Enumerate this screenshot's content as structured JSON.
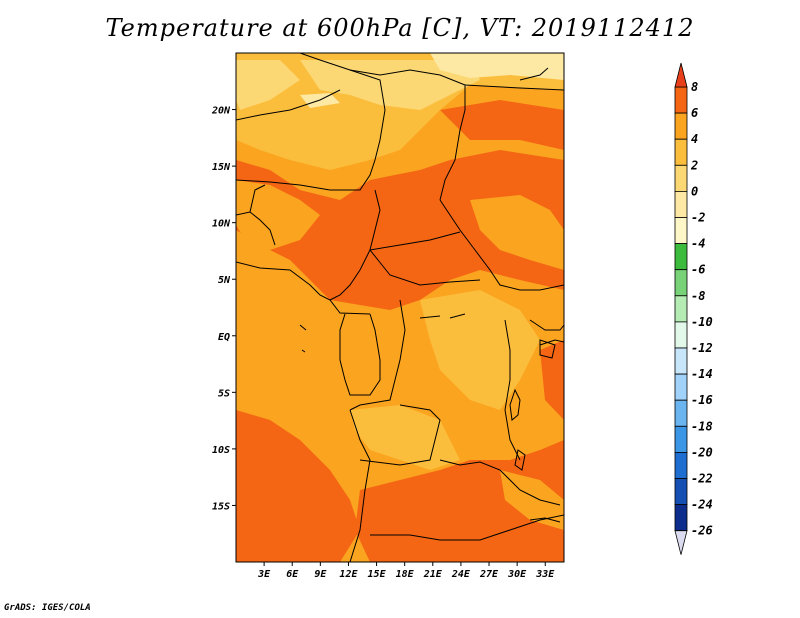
{
  "title": "Temperature at 600hPa [C], VT: 2019112412",
  "credit": "GrADS: IGES/COLA",
  "map": {
    "lat_range": [
      -20,
      25
    ],
    "lon_range": [
      0,
      35
    ],
    "lat_ticks": [
      {
        "value": 20,
        "label": "20N"
      },
      {
        "value": 15,
        "label": "15N"
      },
      {
        "value": 10,
        "label": "10N"
      },
      {
        "value": 5,
        "label": "5N"
      },
      {
        "value": 0,
        "label": "EQ"
      },
      {
        "value": -5,
        "label": "5S"
      },
      {
        "value": -10,
        "label": "10S"
      },
      {
        "value": -15,
        "label": "15S"
      }
    ],
    "lon_ticks": [
      {
        "value": 3,
        "label": "3E"
      },
      {
        "value": 6,
        "label": "6E"
      },
      {
        "value": 9,
        "label": "9E"
      },
      {
        "value": 12,
        "label": "12E"
      },
      {
        "value": 15,
        "label": "15E"
      },
      {
        "value": 18,
        "label": "18E"
      },
      {
        "value": 21,
        "label": "21E"
      },
      {
        "value": 24,
        "label": "24E"
      },
      {
        "value": 27,
        "label": "27E"
      },
      {
        "value": 30,
        "label": "30E"
      },
      {
        "value": 33,
        "label": "33E"
      }
    ],
    "dominant_range": "2 to 4 C",
    "warm_regions_range": "4 to 6 C",
    "cool_regions_range": "0 to 2 C"
  },
  "colorbar": {
    "levels": [
      "8",
      "6",
      "4",
      "2",
      "0",
      "-2",
      "-4",
      "-6",
      "-8",
      "-10",
      "-12",
      "-14",
      "-16",
      "-18",
      "-20",
      "-22",
      "-24",
      "-26"
    ],
    "colors": [
      "#e8401a",
      "#f46614",
      "#fba41f",
      "#fbbd3c",
      "#fbd873",
      "#fde9a3",
      "#fdf6c7",
      "#3cbb3c",
      "#78d278",
      "#b4ecb4",
      "#e2f9ea",
      "#c8e6fa",
      "#a0d2fa",
      "#6ab4f0",
      "#3c96e6",
      "#1e6ed2",
      "#1450b4",
      "#0c2d8c",
      "#050a64"
    ],
    "top_color": "#e8401a",
    "bottom_color": "#dcdcf0"
  },
  "fill_colors": {
    "base": "#fba41f",
    "warm": "#f46614",
    "cool": "#fbbd3c",
    "cooler": "#fbd873",
    "coolest": "#fde9a3"
  }
}
